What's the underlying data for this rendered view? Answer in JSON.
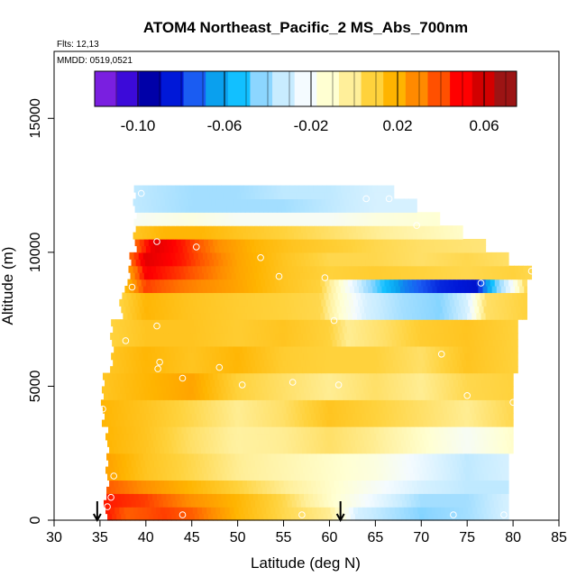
{
  "header": {
    "title": "ATOM4 Northeast_Pacific_2 MS_Abs_700nm",
    "flights_label": "Flts: 12,13",
    "dates_label": "MMDD: 0519,0521"
  },
  "colorbar": {
    "colors": [
      "#7a1fe0",
      "#3c0ad9",
      "#0000a8",
      "#0018d8",
      "#1a5cf2",
      "#0aa0ee",
      "#12c0ff",
      "#8cd6ff",
      "#c8ecff",
      "#f4fbff",
      "#ffffd2",
      "#ffef9a",
      "#ffd23c",
      "#ffb400",
      "#ff8a00",
      "#ff5000",
      "#ff0000",
      "#d20000",
      "#9c1414"
    ],
    "min": -0.12,
    "max": 0.075,
    "tick_values": [
      -0.1,
      -0.06,
      -0.02,
      0.02,
      0.06
    ],
    "tick_labels": [
      "-0.10",
      "-0.06",
      "-0.02",
      "0.02",
      "0.06"
    ]
  },
  "chart_data": {
    "type": "heatmap",
    "title": "ATOM4 Northeast_Pacific_2 MS_Abs_700nm",
    "xlabel": "Latitude (deg N)",
    "ylabel": "Altitude (m)",
    "xlim": [
      30,
      85
    ],
    "ylim": [
      0,
      17500
    ],
    "x_ticks": [
      30,
      35,
      40,
      45,
      50,
      55,
      60,
      65,
      70,
      75,
      80,
      85
    ],
    "x_tick_labels": [
      "30",
      "35",
      "40",
      "45",
      "50",
      "55",
      "60",
      "65",
      "70",
      "75",
      "80",
      "85"
    ],
    "y_ticks": [
      0,
      5000,
      10000,
      15000
    ],
    "y_tick_labels": [
      "0",
      "5000",
      "10000",
      "15000"
    ],
    "cell_width_deg": 0.5,
    "layer_height_m": 250,
    "bands": [
      {
        "alt": [
          0,
          500
        ],
        "lat": [
          35.8,
          79.5
        ],
        "stops": [
          [
            35.8,
            0.05
          ],
          [
            38,
            0.04
          ],
          [
            42,
            0.045
          ],
          [
            45,
            0.04
          ],
          [
            50,
            0.02
          ],
          [
            55,
            0.008
          ],
          [
            60,
            0.0
          ],
          [
            63,
            -0.03
          ],
          [
            70,
            -0.045
          ],
          [
            75,
            -0.04
          ],
          [
            79.5,
            -0.03
          ]
        ]
      },
      {
        "alt": [
          500,
          1000
        ],
        "lat": [
          35.8,
          79.5
        ],
        "stops": [
          [
            35.8,
            0.05
          ],
          [
            40,
            0.045
          ],
          [
            45,
            0.03
          ],
          [
            50,
            0.02
          ],
          [
            55,
            0.008
          ],
          [
            60,
            -0.01
          ],
          [
            65,
            -0.025
          ],
          [
            70,
            -0.04
          ],
          [
            75,
            -0.04
          ],
          [
            79.5,
            -0.03
          ]
        ]
      },
      {
        "alt": [
          1000,
          1500
        ],
        "lat": [
          36,
          79.5
        ],
        "stops": [
          [
            36,
            0.04
          ],
          [
            40,
            0.03
          ],
          [
            45,
            0.02
          ],
          [
            50,
            0.01
          ],
          [
            55,
            0.0
          ],
          [
            60,
            -0.01
          ],
          [
            65,
            -0.02
          ],
          [
            70,
            -0.03
          ],
          [
            75,
            -0.035
          ],
          [
            79.5,
            -0.035
          ]
        ]
      },
      {
        "alt": [
          1500,
          2500
        ],
        "lat": [
          36,
          79.5
        ],
        "stops": [
          [
            36,
            0.025
          ],
          [
            40,
            0.015
          ],
          [
            45,
            0.008
          ],
          [
            50,
            0.0
          ],
          [
            55,
            -0.005
          ],
          [
            60,
            -0.01
          ],
          [
            65,
            -0.015
          ],
          [
            70,
            -0.025
          ],
          [
            75,
            -0.035
          ],
          [
            79.5,
            -0.03
          ]
        ]
      },
      {
        "alt": [
          2500,
          3500
        ],
        "lat": [
          36,
          80
        ],
        "stops": [
          [
            36,
            0.02
          ],
          [
            40,
            0.015
          ],
          [
            45,
            0.005
          ],
          [
            50,
            -0.002
          ],
          [
            55,
            0.0
          ],
          [
            60,
            0.005
          ],
          [
            65,
            0.0
          ],
          [
            70,
            -0.01
          ],
          [
            75,
            -0.02
          ],
          [
            80,
            -0.01
          ]
        ]
      },
      {
        "alt": [
          3500,
          4500
        ],
        "lat": [
          35.5,
          80
        ],
        "stops": [
          [
            35.5,
            0.02
          ],
          [
            40,
            0.015
          ],
          [
            45,
            0.008
          ],
          [
            50,
            0.0
          ],
          [
            55,
            0.005
          ],
          [
            60,
            0.015
          ],
          [
            65,
            0.01
          ],
          [
            70,
            0.005
          ],
          [
            75,
            0.0
          ],
          [
            80,
            0.008
          ]
        ]
      },
      {
        "alt": [
          4500,
          5500
        ],
        "lat": [
          35.5,
          80
        ],
        "stops": [
          [
            35.5,
            0.015
          ],
          [
            40,
            0.02
          ],
          [
            45,
            0.025
          ],
          [
            50,
            0.01
          ],
          [
            55,
            0.005
          ],
          [
            60,
            0.0
          ],
          [
            65,
            0.005
          ],
          [
            70,
            0.0
          ],
          [
            75,
            0.008
          ],
          [
            80,
            0.01
          ]
        ]
      },
      {
        "alt": [
          5500,
          6500
        ],
        "lat": [
          36.5,
          80.5
        ],
        "stops": [
          [
            36.5,
            0.015
          ],
          [
            40,
            0.02
          ],
          [
            45,
            0.015
          ],
          [
            50,
            0.02
          ],
          [
            55,
            0.012
          ],
          [
            60,
            0.01
          ],
          [
            65,
            0.01
          ],
          [
            70,
            0.005
          ],
          [
            75,
            0.015
          ],
          [
            80.5,
            0.01
          ]
        ]
      },
      {
        "alt": [
          6500,
          7500
        ],
        "lat": [
          36.5,
          80.5
        ],
        "stops": [
          [
            36.5,
            0.01
          ],
          [
            40,
            0.015
          ],
          [
            45,
            0.015
          ],
          [
            50,
            0.012
          ],
          [
            55,
            0.015
          ],
          [
            60,
            0.01
          ],
          [
            62,
            0.0
          ],
          [
            66,
            0.005
          ],
          [
            70,
            0.012
          ],
          [
            75,
            0.015
          ],
          [
            80.5,
            0.01
          ]
        ]
      },
      {
        "alt": [
          7500,
          8500
        ],
        "lat": [
          37.5,
          81.5
        ],
        "stops": [
          [
            37.5,
            0.01
          ],
          [
            40,
            0.02
          ],
          [
            45,
            0.015
          ],
          [
            50,
            0.012
          ],
          [
            55,
            0.01
          ],
          [
            59,
            0.008
          ],
          [
            61,
            -0.01
          ],
          [
            64,
            -0.03
          ],
          [
            68,
            -0.04
          ],
          [
            72,
            -0.045
          ],
          [
            75,
            -0.03
          ],
          [
            77,
            0.005
          ],
          [
            81.5,
            0.01
          ]
        ]
      },
      {
        "alt": [
          8500,
          9000
        ],
        "lat": [
          38,
          81.5
        ],
        "stops": [
          [
            38,
            0.02
          ],
          [
            40,
            0.045
          ],
          [
            44,
            0.035
          ],
          [
            50,
            0.025
          ],
          [
            55,
            0.015
          ],
          [
            59,
            0.01
          ],
          [
            61,
            -0.01
          ],
          [
            64,
            -0.04
          ],
          [
            68,
            -0.07
          ],
          [
            72,
            -0.085
          ],
          [
            76,
            -0.09
          ],
          [
            78,
            -0.05
          ],
          [
            80,
            -0.02
          ],
          [
            81.5,
            0.01
          ]
        ]
      },
      {
        "alt": [
          9000,
          9500
        ],
        "lat": [
          38.5,
          82
        ],
        "stops": [
          [
            38.5,
            0.03
          ],
          [
            40,
            0.055
          ],
          [
            44,
            0.045
          ],
          [
            50,
            0.025
          ],
          [
            55,
            0.015
          ],
          [
            60,
            0.01
          ],
          [
            65,
            0.012
          ],
          [
            70,
            0.01
          ],
          [
            75,
            0.008
          ],
          [
            80,
            0.01
          ],
          [
            82,
            0.008
          ]
        ]
      },
      {
        "alt": [
          9500,
          10000
        ],
        "lat": [
          38.5,
          79.5
        ],
        "stops": [
          [
            38.5,
            0.04
          ],
          [
            40,
            0.06
          ],
          [
            44,
            0.05
          ],
          [
            50,
            0.025
          ],
          [
            55,
            0.015
          ],
          [
            60,
            0.008
          ],
          [
            65,
            0.008
          ],
          [
            70,
            0.005
          ],
          [
            75,
            0.008
          ],
          [
            79.5,
            0.005
          ]
        ]
      },
      {
        "alt": [
          10000,
          10500
        ],
        "lat": [
          39,
          77
        ],
        "stops": [
          [
            39,
            0.04
          ],
          [
            41,
            0.06
          ],
          [
            44,
            0.05
          ],
          [
            48,
            0.03
          ],
          [
            52,
            0.02
          ],
          [
            56,
            0.015
          ],
          [
            60,
            0.012
          ],
          [
            65,
            0.008
          ],
          [
            70,
            0.005
          ],
          [
            77,
            0.003
          ]
        ]
      },
      {
        "alt": [
          10500,
          11000
        ],
        "lat": [
          39,
          74.5
        ],
        "stops": [
          [
            39,
            0.015
          ],
          [
            42,
            0.02
          ],
          [
            46,
            0.02
          ],
          [
            50,
            0.015
          ],
          [
            55,
            0.01
          ],
          [
            60,
            0.005
          ],
          [
            65,
            0.0
          ],
          [
            70,
            -0.005
          ],
          [
            74.5,
            -0.01
          ]
        ]
      },
      {
        "alt": [
          11000,
          11500
        ],
        "lat": [
          39,
          72
        ],
        "stops": [
          [
            39,
            -0.02
          ],
          [
            45,
            -0.015
          ],
          [
            50,
            -0.02
          ],
          [
            55,
            -0.02
          ],
          [
            60,
            -0.02
          ],
          [
            65,
            -0.015
          ],
          [
            72,
            -0.012
          ]
        ]
      },
      {
        "alt": [
          11500,
          12000
        ],
        "lat": [
          39,
          69.5
        ],
        "stops": [
          [
            39,
            -0.035
          ],
          [
            45,
            -0.04
          ],
          [
            50,
            -0.04
          ],
          [
            55,
            -0.04
          ],
          [
            60,
            -0.035
          ],
          [
            65,
            -0.03
          ],
          [
            69.5,
            -0.03
          ]
        ]
      },
      {
        "alt": [
          12000,
          12500
        ],
        "lat": [
          39,
          67
        ],
        "stops": [
          [
            39,
            -0.035
          ],
          [
            45,
            -0.04
          ],
          [
            50,
            -0.04
          ],
          [
            55,
            -0.035
          ],
          [
            60,
            -0.035
          ],
          [
            65,
            -0.03
          ],
          [
            67,
            -0.03
          ]
        ]
      }
    ],
    "points": [
      [
        39.5,
        12200
      ],
      [
        64,
        12000
      ],
      [
        66.5,
        12000
      ],
      [
        69.5,
        11000
      ],
      [
        41.2,
        10400
      ],
      [
        45.5,
        10200
      ],
      [
        52.5,
        9800
      ],
      [
        54.5,
        9100
      ],
      [
        59.5,
        9050
      ],
      [
        76.5,
        8850
      ],
      [
        82,
        9300
      ],
      [
        38.5,
        8700
      ],
      [
        41.2,
        7250
      ],
      [
        60.5,
        7450
      ],
      [
        37.8,
        6700
      ],
      [
        41.5,
        5900
      ],
      [
        41.3,
        5650
      ],
      [
        48,
        5700
      ],
      [
        72.2,
        6200
      ],
      [
        44,
        5300
      ],
      [
        50.5,
        5050
      ],
      [
        56,
        5150
      ],
      [
        61,
        5050
      ],
      [
        75,
        4650
      ],
      [
        35.3,
        4150
      ],
      [
        80,
        4400
      ],
      [
        36.5,
        1650
      ],
      [
        36.2,
        850
      ],
      [
        35.8,
        500
      ],
      [
        44,
        200
      ],
      [
        57,
        200
      ],
      [
        73.5,
        200
      ],
      [
        79,
        200
      ]
    ],
    "arrows": [
      34.7,
      61.2
    ]
  }
}
